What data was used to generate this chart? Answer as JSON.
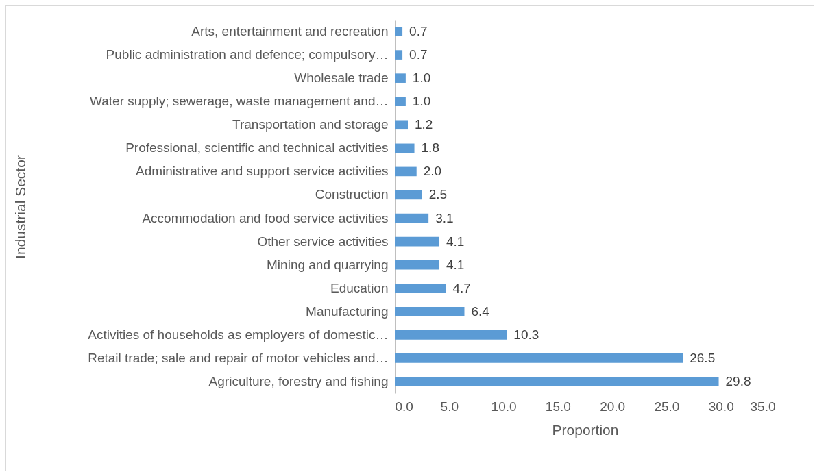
{
  "chart_data": {
    "type": "bar",
    "orientation": "horizontal",
    "xlabel": "Proportion",
    "ylabel": "Industrial Sector",
    "categories": [
      "Arts, entertainment and recreation",
      "Public administration and defence; compulsory…",
      "Wholesale trade",
      "Water supply; sewerage, waste management and…",
      "Transportation and storage",
      "Professional, scientific and technical activities",
      "Administrative and support service activities",
      "Construction",
      "Accommodation and food service activities",
      "Other service activities",
      "Mining and quarrying",
      "Education",
      "Manufacturing",
      "Activities of households as employers of domestic…",
      "Retail trade; sale and repair of motor vehicles and…",
      "Agriculture, forestry and fishing"
    ],
    "values": [
      0.7,
      0.7,
      1.0,
      1.0,
      1.2,
      1.8,
      2.0,
      2.5,
      3.1,
      4.1,
      4.1,
      4.7,
      6.4,
      10.3,
      26.5,
      29.8
    ],
    "value_labels": [
      "0.7",
      "0.7",
      "1.0",
      "1.0",
      "1.2",
      "1.8",
      "2.0",
      "2.5",
      "3.1",
      "4.1",
      "4.1",
      "4.7",
      "6.4",
      "10.3",
      "26.5",
      "29.8"
    ],
    "color": "#5b9bd5",
    "xlim": [
      0,
      35
    ],
    "xticks": [
      {
        "value": 0,
        "label": "0.0"
      },
      {
        "value": 5,
        "label": "5.0"
      },
      {
        "value": 10,
        "label": "10.0"
      },
      {
        "value": 15,
        "label": "15.0"
      },
      {
        "value": 20,
        "label": "20.0"
      },
      {
        "value": 25,
        "label": "25.0"
      },
      {
        "value": 30,
        "label": "30.0"
      },
      {
        "value": 35,
        "label": "35.0"
      }
    ],
    "grid": false
  }
}
